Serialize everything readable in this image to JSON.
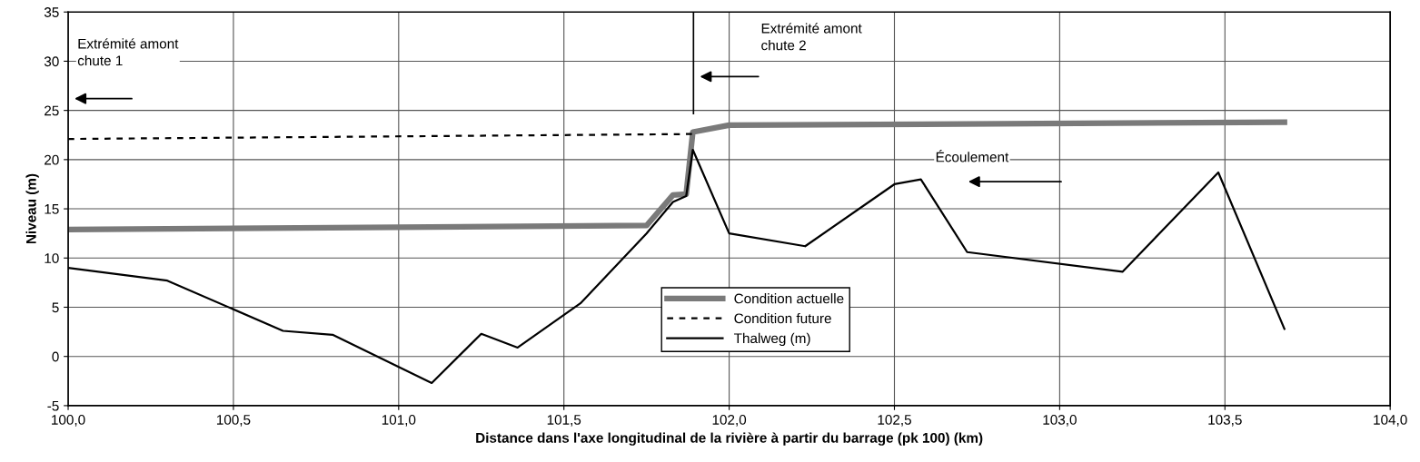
{
  "chart_data": {
    "type": "line",
    "xlabel": "Distance dans l'axe longitudinal de la rivière à partir du barrage (pk 100) (km)",
    "ylabel": "Niveau (m)",
    "series": [
      {
        "name": "Condition actuelle",
        "color": "#7a7a7a",
        "line_style": "solid",
        "x": [
          100.0,
          101.75,
          101.83,
          101.87,
          101.89,
          102.0,
          103.68
        ],
        "values": [
          12.9,
          13.3,
          16.4,
          16.5,
          22.8,
          23.5,
          23.8
        ]
      },
      {
        "name": "Condition future",
        "color": "#000000",
        "line_style": "dashed",
        "x": [
          100.0,
          101.89
        ],
        "values": [
          22.1,
          22.6
        ]
      },
      {
        "name": "Thalweg (m)",
        "color": "#000000",
        "line_style": "solid",
        "x": [
          100.0,
          100.3,
          100.65,
          100.8,
          101.1,
          101.25,
          101.36,
          101.55,
          101.75,
          101.83,
          101.87,
          101.89,
          102.0,
          102.23,
          102.5,
          102.58,
          102.72,
          103.19,
          103.48,
          103.68
        ],
        "values": [
          9.0,
          7.7,
          2.6,
          2.2,
          -2.7,
          2.3,
          0.9,
          5.4,
          12.5,
          15.7,
          16.3,
          21.0,
          12.5,
          11.2,
          17.5,
          18.0,
          10.6,
          8.6,
          18.7,
          2.8
        ]
      }
    ],
    "annotations": [
      "Extrémité amont\nchute 1",
      "Extrémité amont\nchute 2",
      "Écoulement"
    ],
    "xlim": [
      100.0,
      104.0
    ],
    "xticks": [
      {
        "value": 100.0,
        "label": "100,0"
      },
      {
        "value": 100.5,
        "label": "100,5"
      },
      {
        "value": 101.0,
        "label": "101,0"
      },
      {
        "value": 101.5,
        "label": "101,5"
      },
      {
        "value": 102.0,
        "label": "102,0"
      },
      {
        "value": 102.5,
        "label": "102,5"
      },
      {
        "value": 103.0,
        "label": "103,0"
      },
      {
        "value": 103.5,
        "label": "103,5"
      },
      {
        "value": 104.0,
        "label": "104,0"
      }
    ],
    "ylim": [
      -5,
      35
    ],
    "yticks": [
      -5,
      0,
      5,
      10,
      15,
      20,
      25,
      30,
      35
    ],
    "grid": true,
    "legend": "bottom",
    "marker": "none"
  }
}
